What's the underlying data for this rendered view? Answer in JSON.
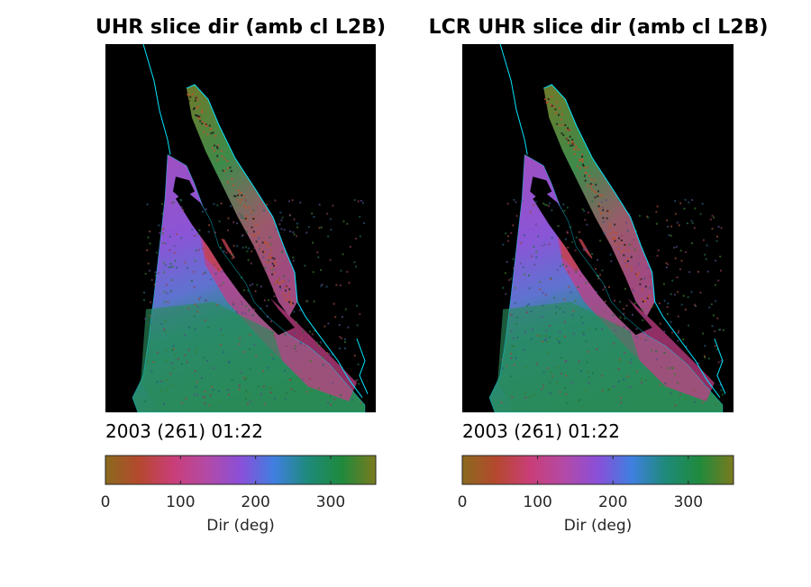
{
  "chart_data": [
    {
      "type": "heatmap",
      "title": "UHR slice dir (amb cl L2B)",
      "annotation": "2003 (261) 01:22",
      "colorbar": {
        "label": "Dir (deg)",
        "range": [
          0,
          360
        ],
        "ticks": [
          0,
          100,
          200,
          300
        ],
        "tick_labels": [
          "0",
          "100",
          "200",
          "300"
        ],
        "colors": [
          "#8a6a1e",
          "#b5482e",
          "#c93e78",
          "#b34aa6",
          "#8a4fd8",
          "#3f7fe0",
          "#1e8a7a",
          "#1f8a3c",
          "#7a7a1e"
        ]
      },
      "colors": {
        "background": "#000000",
        "coastline": "#00e5ff"
      }
    },
    {
      "type": "heatmap",
      "title": "LCR UHR slice dir (amb cl L2B)",
      "annotation": "2003 (261) 01:22",
      "colorbar": {
        "label": "Dir (deg)",
        "range": [
          0,
          360
        ],
        "ticks": [
          0,
          100,
          200,
          300
        ],
        "tick_labels": [
          "0",
          "100",
          "200",
          "300"
        ],
        "colors": [
          "#8a6a1e",
          "#b5482e",
          "#c93e78",
          "#b34aa6",
          "#8a4fd8",
          "#3f7fe0",
          "#1e8a7a",
          "#1f8a3c",
          "#7a7a1e"
        ]
      },
      "colors": {
        "background": "#000000",
        "coastline": "#00e5ff"
      }
    }
  ]
}
